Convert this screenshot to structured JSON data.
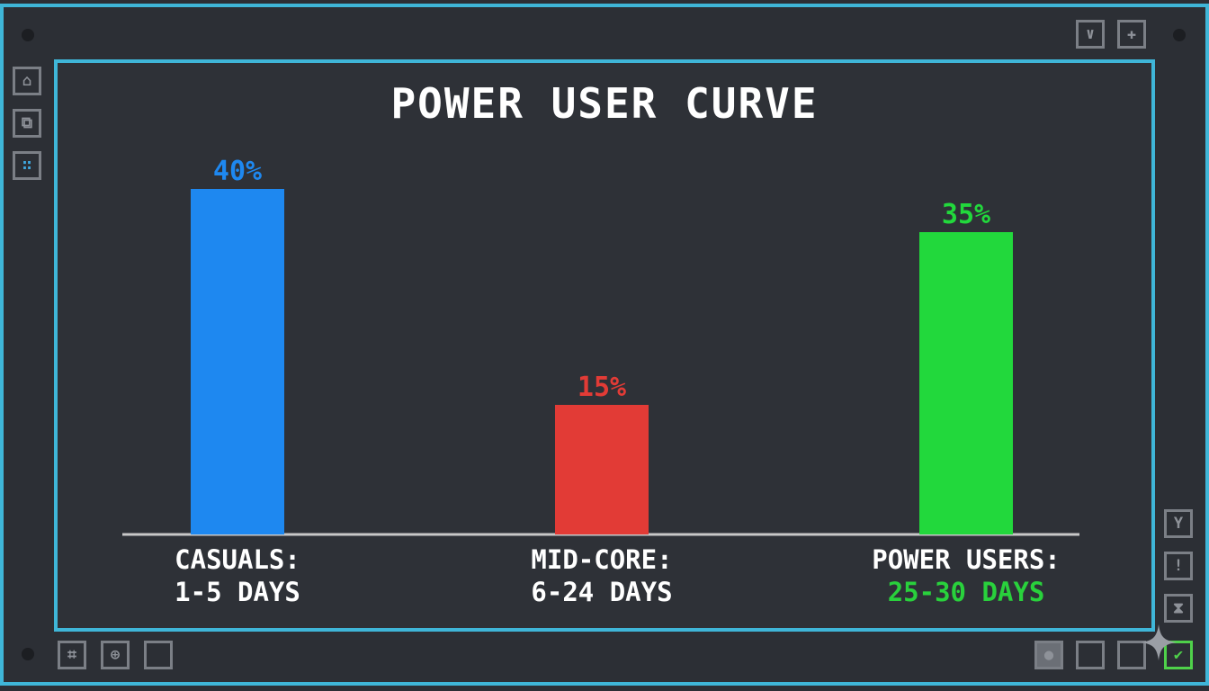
{
  "chart_data": {
    "type": "bar",
    "title": "POWER USER CURVE",
    "categories": [
      "CASUALS:",
      "MID-CORE:",
      "POWER USERS:"
    ],
    "category_ranges": [
      "1-5 DAYS",
      "6-24 DAYS",
      "25-30 DAYS"
    ],
    "values": [
      40,
      15,
      35
    ],
    "value_labels": [
      "40%",
      "15%",
      "35%"
    ],
    "colors": [
      "#1e88f0",
      "#e23b36",
      "#22d83c"
    ],
    "range_colors": [
      "#ffffff",
      "#ffffff",
      "#29d13c"
    ],
    "ylim": [
      0,
      40
    ],
    "grid": false
  },
  "toolbars": {
    "left": [
      "lock-icon",
      "layers-icon",
      "grid-dots-icon"
    ],
    "top_right": [
      "mask-icon",
      "plus-icon"
    ],
    "right": [
      "antenna-icon",
      "alert-icon",
      "hourglass-icon"
    ],
    "bottom_left": [
      "pattern-icon",
      "globe-icon",
      "square-icon"
    ],
    "bottom_right": [
      "record-icon",
      "square-icon",
      "square-icon",
      "check-icon"
    ]
  },
  "colors": {
    "frame": "#3fb6d8",
    "background": "#2c2f35",
    "axis": "#c8c8c8"
  }
}
